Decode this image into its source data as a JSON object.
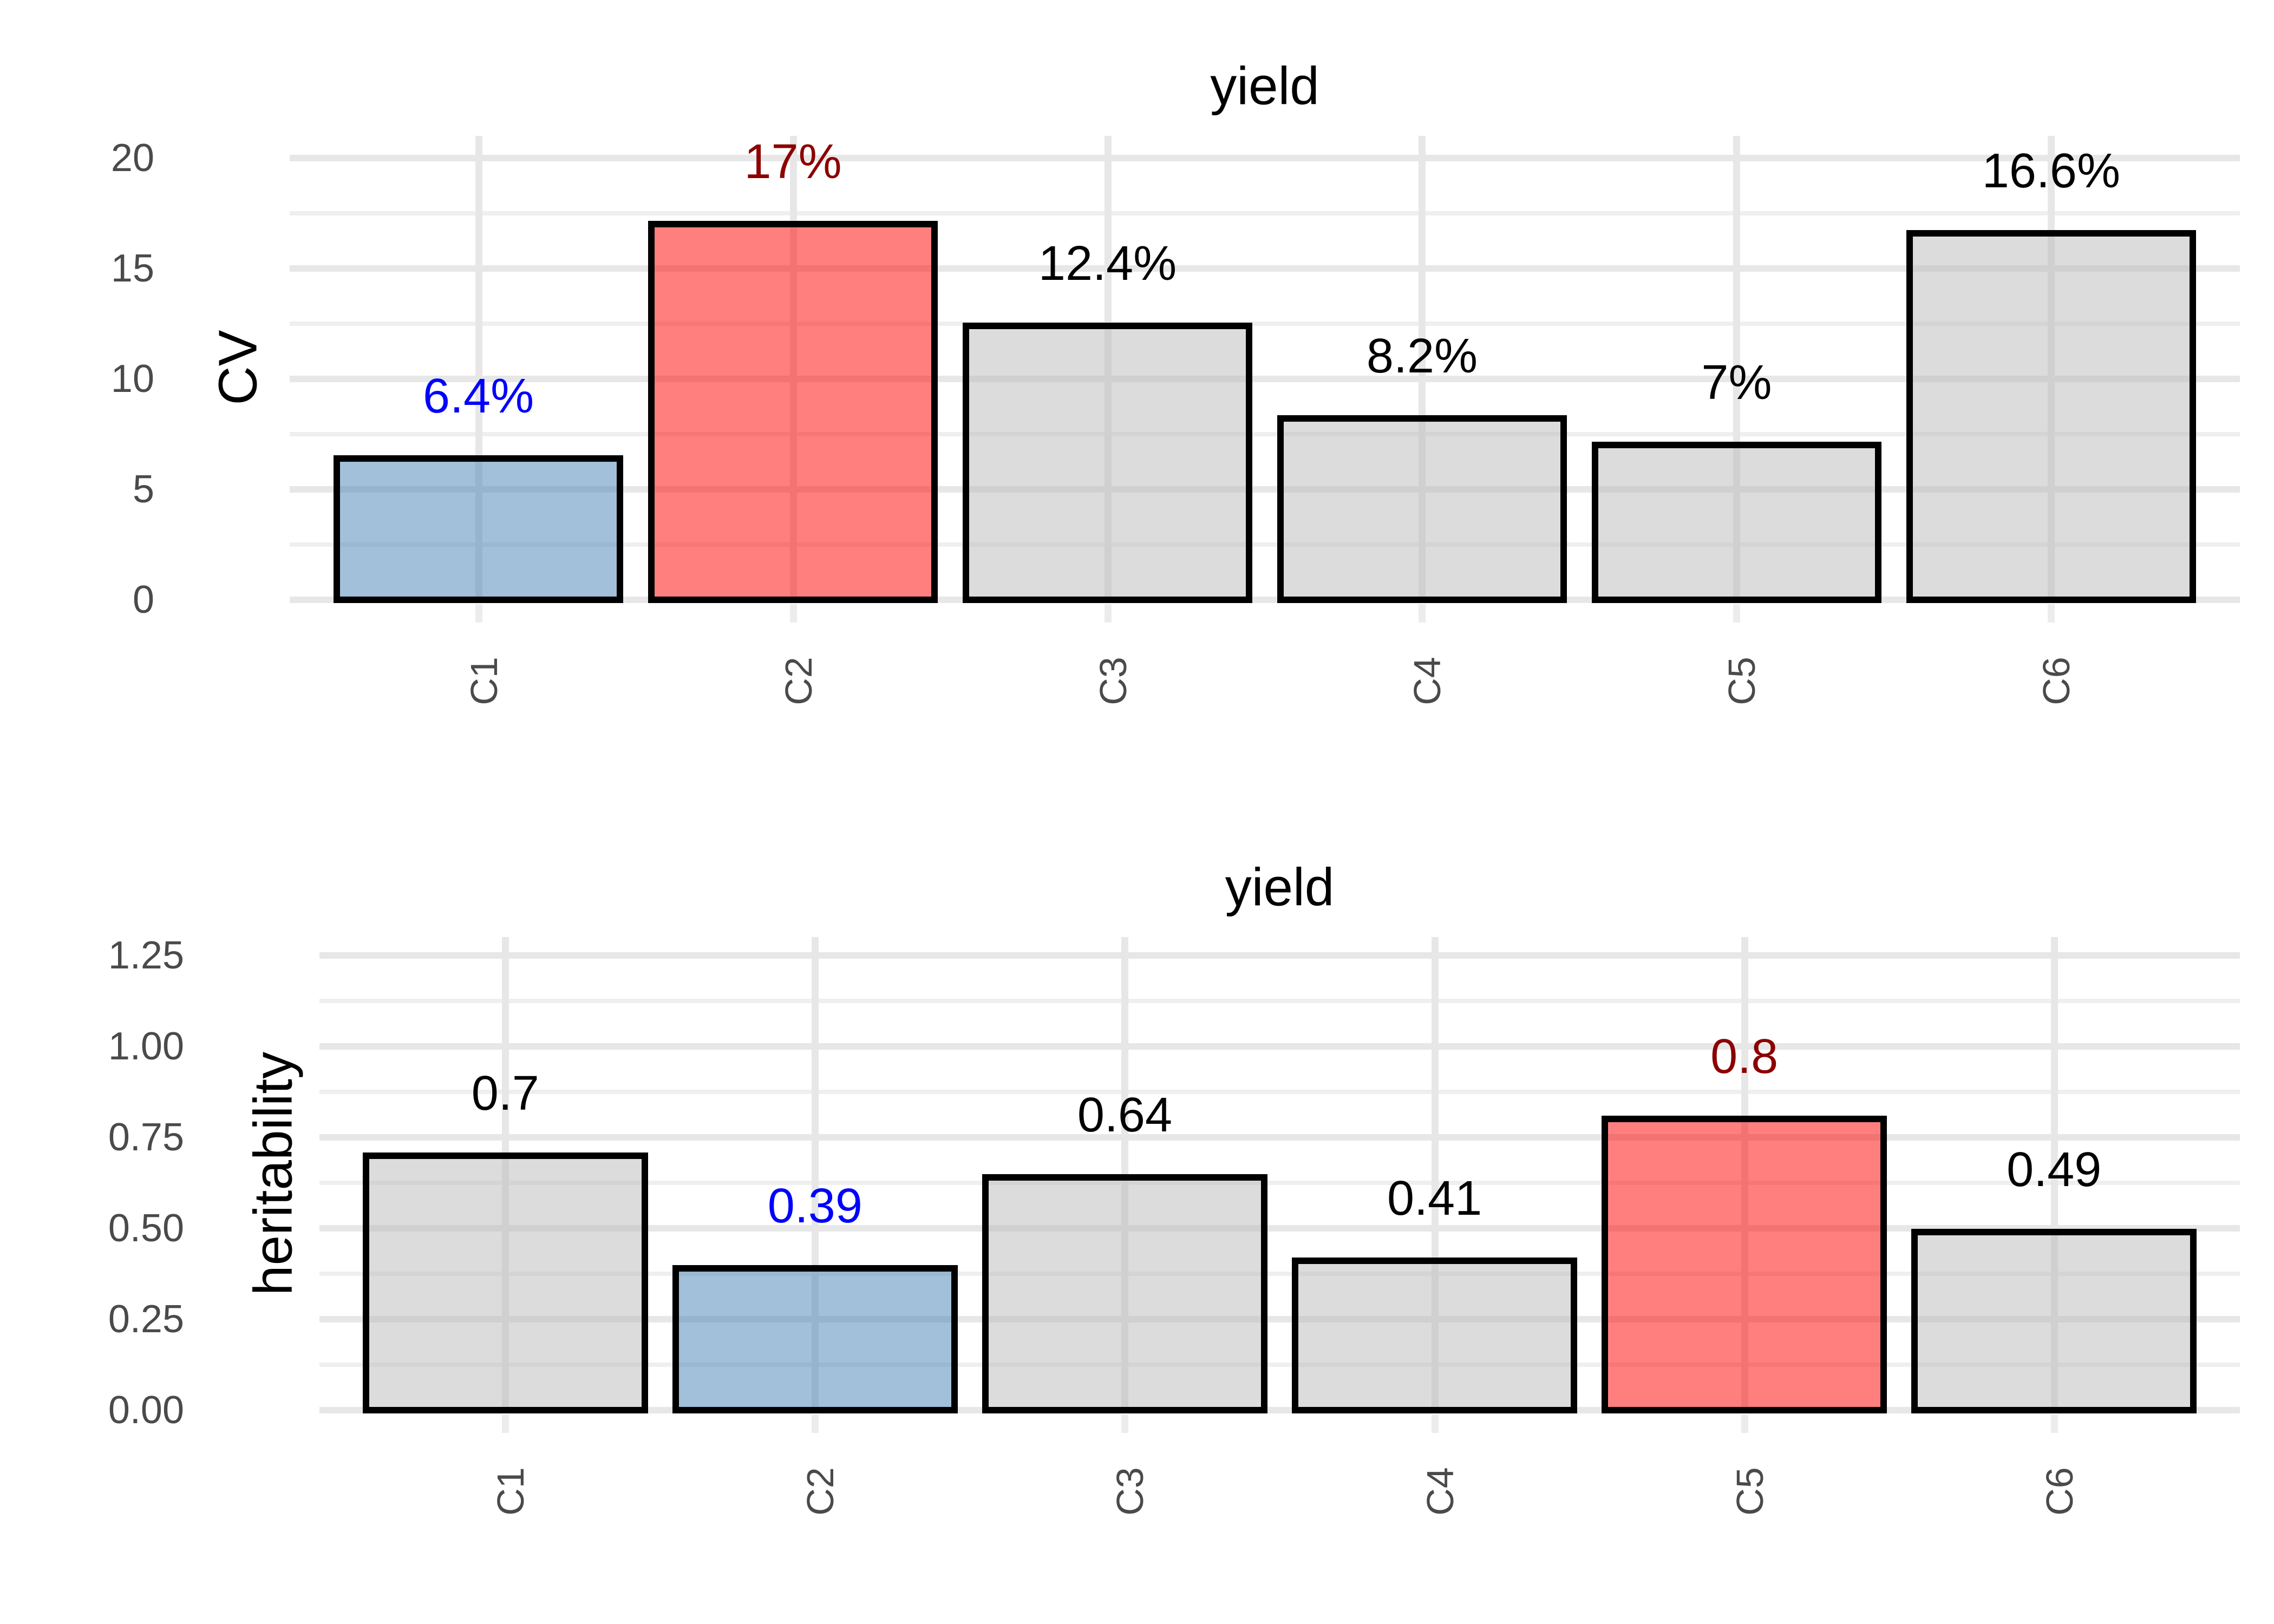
{
  "figure_background": "#FFFFFF",
  "colors": {
    "bar_fill_blue": "rgba(70,130,180,0.5)",
    "bar_fill_red": "rgba(255,0,0,0.5)",
    "bar_fill_gray": "rgba(185,185,185,0.5)",
    "bar_border": "#000000",
    "label_blue": "#0000FF",
    "label_dark_red": "#8B0000",
    "label_black": "#000000",
    "axis_text": "#4A4A4A",
    "grid_major": "#E7E7E7",
    "grid_minor": "#EFEFEF",
    "tick_mark": "#ECECEC"
  },
  "chart_data": [
    {
      "type": "bar",
      "title": "yield",
      "ylabel": "CV",
      "xlabel": "",
      "categories": [
        "C1",
        "C2",
        "C3",
        "C4",
        "C5",
        "C6"
      ],
      "values": [
        6.4,
        17,
        12.4,
        8.2,
        7,
        16.6
      ],
      "bar_labels": [
        "6.4%",
        "17%",
        "12.4%",
        "8.2%",
        "7%",
        "16.6%"
      ],
      "bar_label_colors": [
        "#0000FF",
        "#8B0000",
        "#000000",
        "#000000",
        "#000000",
        "#000000"
      ],
      "bar_fills": [
        "rgba(70,130,180,0.5)",
        "rgba(255,0,0,0.5)",
        "rgba(185,185,185,0.5)",
        "rgba(185,185,185,0.5)",
        "rgba(185,185,185,0.5)",
        "rgba(185,185,185,0.5)"
      ],
      "y_tick_labels": [
        "0",
        "5",
        "10",
        "15",
        "20"
      ],
      "y_major_breaks": [
        0,
        5,
        10,
        15,
        20
      ],
      "y_minor_breaks": [
        2.5,
        7.5,
        12.5,
        17.5
      ],
      "ylim": [
        0,
        21
      ],
      "grid": "on",
      "legend": "none"
    },
    {
      "type": "bar",
      "title": "yield",
      "ylabel": "heritability",
      "xlabel": "",
      "categories": [
        "C1",
        "C2",
        "C3",
        "C4",
        "C5",
        "C6"
      ],
      "values": [
        0.7,
        0.39,
        0.64,
        0.41,
        0.8,
        0.49
      ],
      "bar_labels": [
        "0.7",
        "0.39",
        "0.64",
        "0.41",
        "0.8",
        "0.49"
      ],
      "bar_label_colors": [
        "#000000",
        "#0000FF",
        "#000000",
        "#000000",
        "#8B0000",
        "#000000"
      ],
      "bar_fills": [
        "rgba(185,185,185,0.5)",
        "rgba(70,130,180,0.5)",
        "rgba(185,185,185,0.5)",
        "rgba(185,185,185,0.5)",
        "rgba(255,0,0,0.5)",
        "rgba(185,185,185,0.5)"
      ],
      "y_tick_labels": [
        "0.00",
        "0.25",
        "0.50",
        "0.75",
        "1.00",
        "1.25"
      ],
      "y_major_breaks": [
        0,
        0.25,
        0.5,
        0.75,
        1.0,
        1.25
      ],
      "y_minor_breaks": [
        0.125,
        0.375,
        0.625,
        0.875,
        1.125
      ],
      "ylim": [
        0,
        1.3
      ],
      "grid": "on",
      "legend": "none"
    }
  ]
}
